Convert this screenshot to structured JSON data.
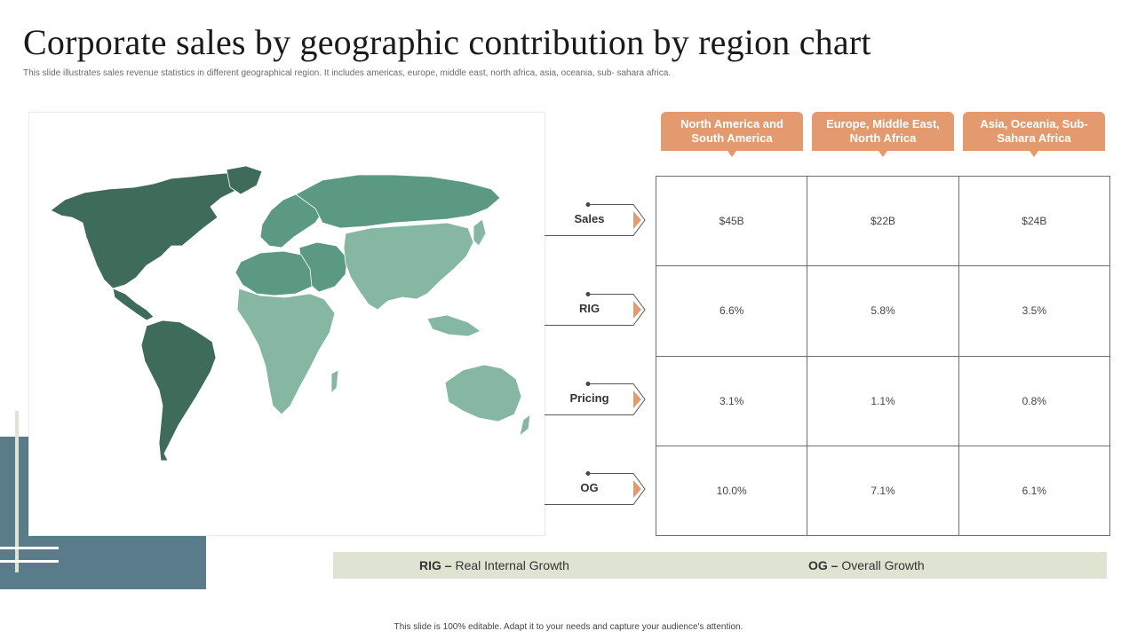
{
  "slide": {
    "title": "Corporate sales by geographic contribution by region chart",
    "subtitle": "This slide illustrates sales revenue statistics in different geographical region. It includes americas, europe, middle east, north africa, asia, oceania, sub- sahara africa.",
    "footer": "This slide is 100% editable. Adapt it to your needs and capture your audience's attention."
  },
  "map": {
    "colors": {
      "americas": "#3f6b5b",
      "europe_me_africa_north": "#5c9983",
      "africa_south_asia": "#86b7a3",
      "outline": "#ffffff"
    }
  },
  "table": {
    "columns": [
      {
        "label": "North America and South America"
      },
      {
        "label": "Europe, Middle East, North Africa"
      },
      {
        "label": "Asia, Oceania, Sub-Sahara Africa"
      }
    ],
    "rows": [
      {
        "label": "Sales",
        "values": [
          "$45B",
          "$22B",
          "$24B"
        ]
      },
      {
        "label": "RIG",
        "values": [
          "6.6%",
          "5.8%",
          "3.5%"
        ]
      },
      {
        "label": "Pricing",
        "values": [
          "3.1%",
          "1.1%",
          "0.8%"
        ]
      },
      {
        "label": "OG",
        "values": [
          "10.0%",
          "7.1%",
          "6.1%"
        ]
      }
    ]
  },
  "legend": {
    "rig_abbr": "RIG –",
    "rig_text": " Real Internal Growth",
    "og_abbr": "OG –",
    "og_text": " Overall Growth"
  },
  "colors": {
    "header_bg": "#e29a6e",
    "arrow_accent": "#e29a6e",
    "legend_bg": "#dfe3d2",
    "deco_block": "#5a7b89"
  }
}
